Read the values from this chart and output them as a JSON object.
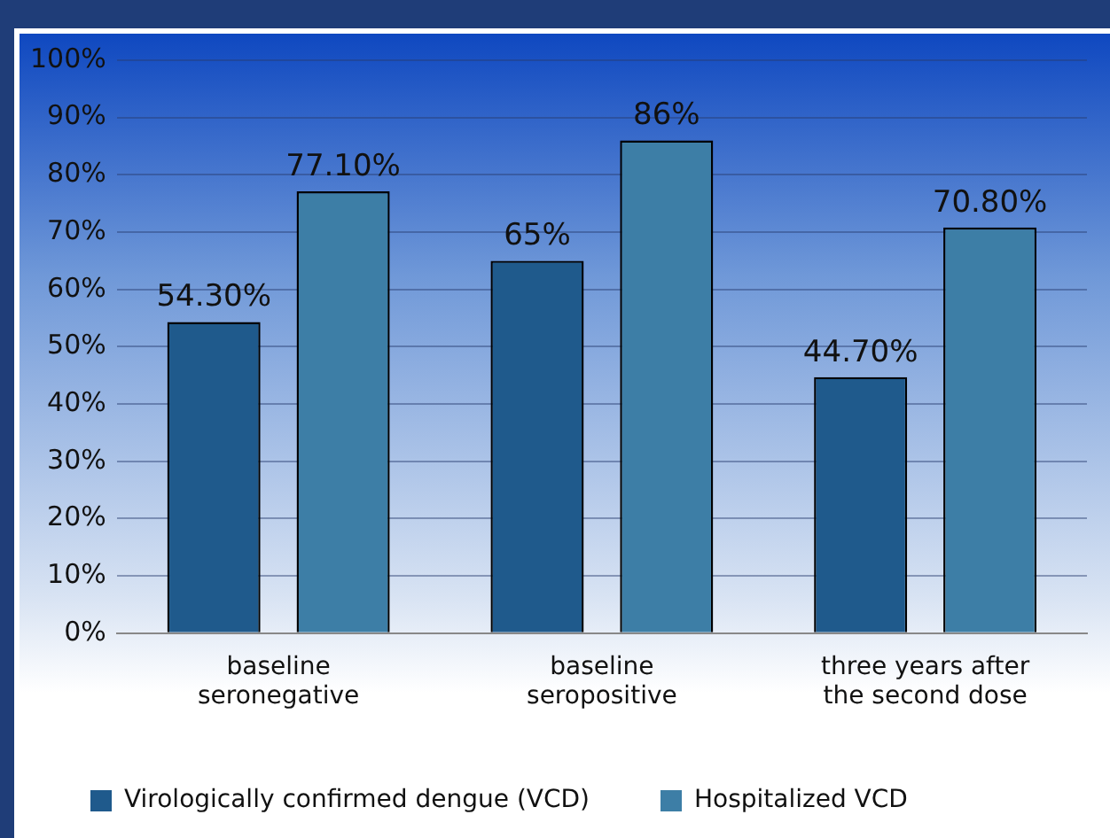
{
  "chart_data": {
    "type": "bar",
    "categories": [
      "baseline seronegative",
      "baseline seropositive",
      "three years after the second dose"
    ],
    "series": [
      {
        "name": "Virologically confirmed dengue (VCD)",
        "color": "#1f5a8c",
        "values": [
          54.3,
          65,
          44.7
        ],
        "value_labels": [
          "54.30%",
          "65%",
          "44.70%"
        ]
      },
      {
        "name": "Hospitalized VCD",
        "color": "#3d7ea6",
        "values": [
          77.1,
          86,
          70.8
        ],
        "value_labels": [
          "77.10%",
          "86%",
          "70.80%"
        ]
      }
    ],
    "ylim": [
      0,
      100
    ],
    "yticks": [
      {
        "value": 0,
        "label": "0%"
      },
      {
        "value": 10,
        "label": "10%"
      },
      {
        "value": 20,
        "label": "20%"
      },
      {
        "value": 30,
        "label": "30%"
      },
      {
        "value": 40,
        "label": "40%"
      },
      {
        "value": 50,
        "label": "50%"
      },
      {
        "value": 60,
        "label": "60%"
      },
      {
        "value": 70,
        "label": "70%"
      },
      {
        "value": 80,
        "label": "80%"
      },
      {
        "value": 90,
        "label": "90%"
      },
      {
        "value": 100,
        "label": "100%"
      }
    ],
    "grid": "y",
    "legend": "bottom left"
  }
}
